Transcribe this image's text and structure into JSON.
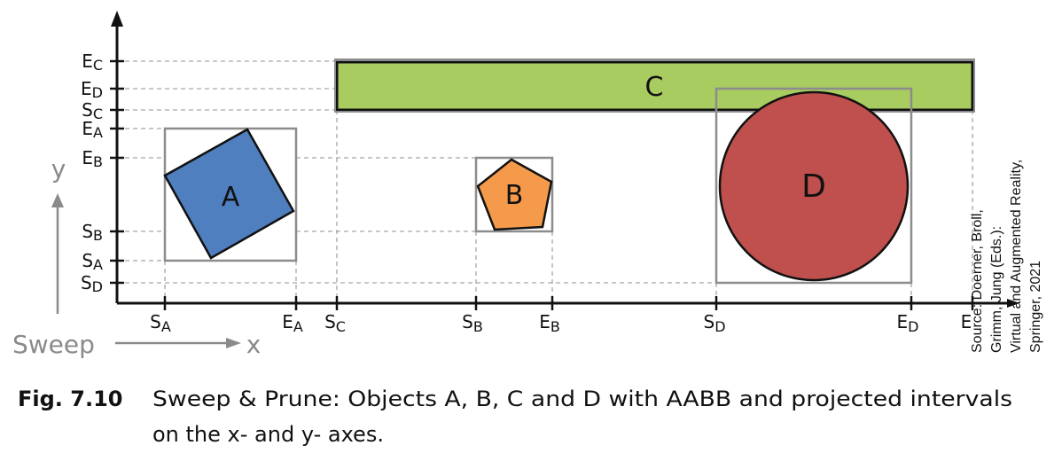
{
  "objects": {
    "A": {
      "label": "A",
      "color": "#4f7fbf"
    },
    "B": {
      "label": "B",
      "color": "#f59a4a"
    },
    "C": {
      "label": "C",
      "color": "#a8cc60"
    },
    "D": {
      "label": "D",
      "color": "#c0504d"
    }
  },
  "x_axis": {
    "word": "x",
    "sweep_label": "Sweep",
    "ticks": [
      {
        "letter": "S",
        "sub": "A"
      },
      {
        "letter": "E",
        "sub": "A"
      },
      {
        "letter": "S",
        "sub": "C"
      },
      {
        "letter": "S",
        "sub": "B"
      },
      {
        "letter": "E",
        "sub": "B"
      },
      {
        "letter": "S",
        "sub": "D"
      },
      {
        "letter": "E",
        "sub": "D"
      },
      {
        "letter": "E",
        "sub": ""
      }
    ]
  },
  "y_axis": {
    "word": "y",
    "ticks": [
      {
        "letter": "E",
        "sub": "C"
      },
      {
        "letter": "E",
        "sub": "D"
      },
      {
        "letter": "S",
        "sub": "C"
      },
      {
        "letter": "E",
        "sub": "A"
      },
      {
        "letter": "E",
        "sub": "B"
      },
      {
        "letter": "S",
        "sub": "B"
      },
      {
        "letter": "S",
        "sub": "A"
      },
      {
        "letter": "S",
        "sub": "D"
      }
    ]
  },
  "source": {
    "lines": [
      "Source: Doerner, Broll,",
      "Grimm, Jung (Eds.):",
      "Virtual and Augmented Reality,",
      "Springer, 2021"
    ]
  },
  "caption": {
    "figure": "Fig. 7.10",
    "line1": "Sweep & Prune: Objects A, B, C and D with AABB and projected intervals",
    "line2": "on the x- and y- axes."
  },
  "colors": {
    "aabb": "#8c8c8c",
    "guide": "#a6a6a6",
    "axis": "#111111",
    "arrow_gray": "#8a8a8a"
  }
}
